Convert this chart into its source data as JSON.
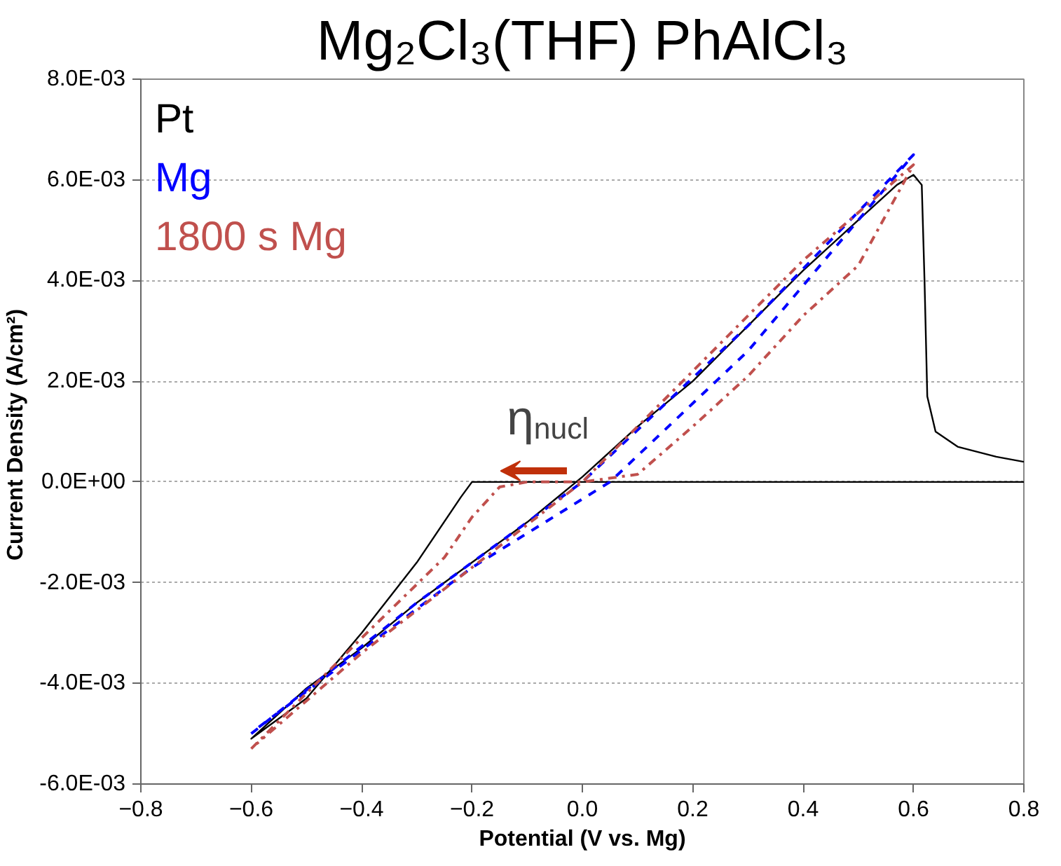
{
  "chart_data": {
    "type": "line",
    "title": "Mg₂Cl₃(THF) PhAlCl₃",
    "xlabel": "Potential (V vs. Mg)",
    "ylabel": "Current Density  (A/cm²)",
    "xlim": [
      -0.8,
      0.8
    ],
    "ylim": [
      -0.006,
      0.008
    ],
    "xticks": [
      -0.8,
      -0.6,
      -0.4,
      -0.2,
      {
        "value": 0,
        "label": "0.0"
      },
      0.2,
      0.4,
      0.6,
      0.8
    ],
    "yticks": [
      {
        "value": -0.006,
        "label": "-6.0E-03"
      },
      {
        "value": -0.004,
        "label": "-4.0E-03"
      },
      {
        "value": -0.002,
        "label": "-2.0E-03"
      },
      {
        "value": 0,
        "label": "0.0E+00"
      },
      {
        "value": 0.002,
        "label": "2.0E-03"
      },
      {
        "value": 0.004,
        "label": "4.0E-03"
      },
      {
        "value": 0.006,
        "label": "6.0E-03"
      },
      {
        "value": 0.008,
        "label": "8.0E-03"
      }
    ],
    "grid": "y",
    "marker": "none",
    "annotations": [
      "η$_{nucl}$"
    ],
    "series": [
      {
        "name": "Pt",
        "color": "#000000",
        "line_style": "solid",
        "x": [
          0.8,
          0.4,
          0.0,
          -0.18,
          -0.2,
          -0.22,
          -0.3,
          -0.4,
          -0.5,
          -0.6,
          -0.5,
          -0.4,
          -0.3,
          -0.2,
          -0.1,
          0.0,
          0.1,
          0.2,
          0.3,
          0.4,
          0.5,
          0.57,
          0.6,
          0.615,
          0.62,
          0.625,
          0.64,
          0.68,
          0.75,
          0.8
        ],
        "values": [
          0.0,
          0.0,
          0.0,
          0.0,
          0.0,
          -0.0003,
          -0.0016,
          -0.003,
          -0.0043,
          -0.0051,
          -0.0041,
          -0.0033,
          -0.0024,
          -0.0016,
          -0.0008,
          0.0001,
          0.0011,
          0.002,
          0.0031,
          0.0042,
          0.0052,
          0.0059,
          0.0061,
          0.0059,
          0.004,
          0.0017,
          0.001,
          0.0007,
          0.0005,
          0.0004
        ]
      },
      {
        "name": "Mg",
        "color": "#0000ff",
        "line_style": "dashed",
        "x": [
          -0.6,
          -0.3,
          0.0,
          0.3,
          0.6,
          0.3,
          0.05,
          -0.2,
          -0.59
        ],
        "values": [
          -0.005,
          -0.0024,
          0.0,
          0.0031,
          0.0065,
          0.0026,
          0.0,
          -0.0017,
          -0.0049
        ]
      },
      {
        "name": "1800 s  Mg",
        "color": "#c0504d",
        "line_style": "dashdot",
        "x": [
          -0.6,
          -0.4,
          -0.25,
          -0.2,
          -0.15,
          -0.1,
          0.0,
          0.1,
          0.2,
          0.3,
          0.4,
          0.5,
          0.6,
          0.4,
          0.2,
          0.0,
          -0.2,
          -0.4,
          -0.59
        ],
        "values": [
          -0.0053,
          -0.0031,
          -0.0015,
          -0.0007,
          -0.0001,
          0.0,
          0.0,
          0.00015,
          0.0011,
          0.0021,
          0.0033,
          0.0043,
          0.0063,
          0.0044,
          0.0022,
          0.0,
          -0.0017,
          -0.0034,
          -0.0052
        ]
      }
    ]
  }
}
